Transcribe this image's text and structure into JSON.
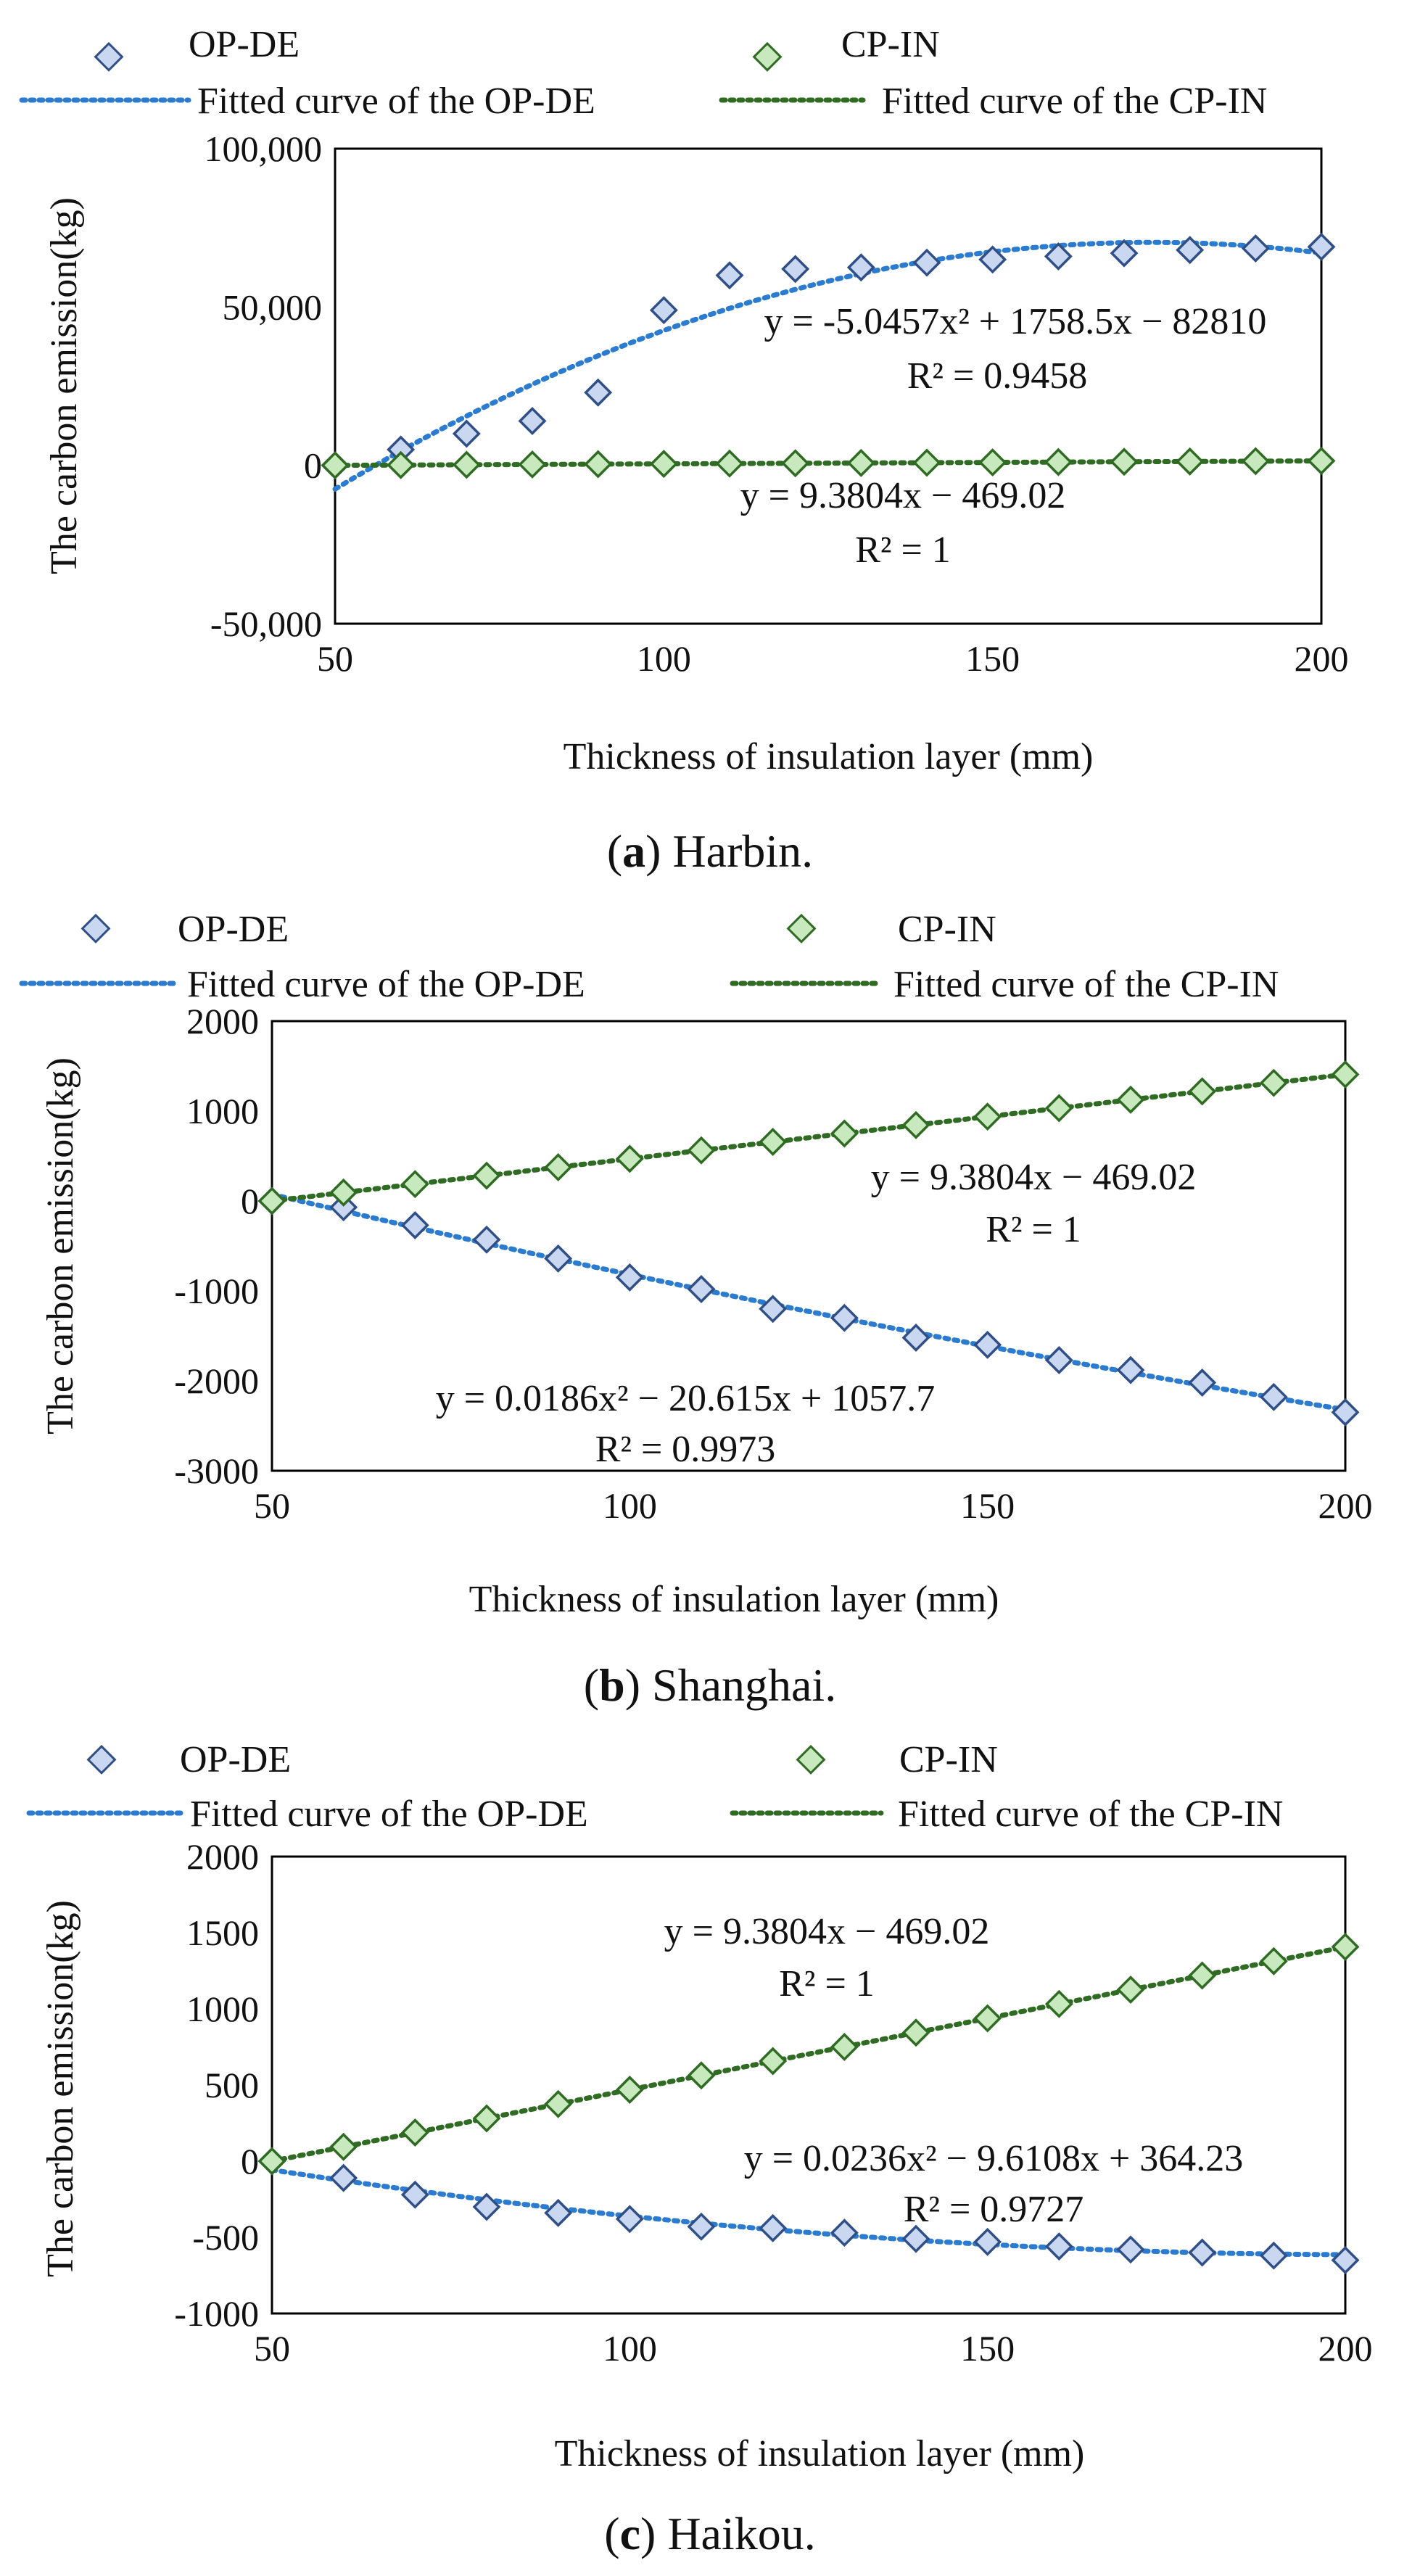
{
  "colors": {
    "op_stroke": "#2F4F86",
    "op_fill": "#C9D8F0",
    "op_fit": "#2B7BD0",
    "cp_stroke": "#2F6B22",
    "cp_fill": "#C8E8BE",
    "cp_fit": "#2F6B22",
    "axis": "#000000"
  },
  "chart_data": [
    {
      "id": "a",
      "type": "scatter",
      "title": "",
      "caption_letter": "a",
      "caption_text": "Harbin.",
      "xlabel": "Thickness of  insulation layer (mm)",
      "ylabel": "The carbon emission(kg)",
      "xlim": [
        50,
        200
      ],
      "ylim": [
        -50000,
        100000
      ],
      "xticks": [
        50,
        100,
        150,
        200
      ],
      "yticks": [
        -50000,
        0,
        50000,
        100000
      ],
      "ytick_labels": [
        "-50,000",
        "0",
        "50,000",
        "100,000"
      ],
      "xtick_labels": [
        "50",
        "100",
        "150",
        "200"
      ],
      "legend": {
        "op": "OP-DE",
        "cp": "CP-IN",
        "op_fit": "Fitted curve of the OP-DE",
        "cp_fit": "Fitted curve of the CP-IN"
      },
      "x": [
        50,
        60,
        70,
        80,
        90,
        100,
        110,
        120,
        130,
        140,
        150,
        160,
        170,
        180,
        190,
        200
      ],
      "series": [
        {
          "name": "OP-DE",
          "values": [
            0,
            5000,
            10000,
            14000,
            23000,
            49000,
            60000,
            62000,
            62500,
            64000,
            65000,
            66000,
            67000,
            68000,
            68500,
            69000
          ],
          "fit": {
            "type": "poly2",
            "a": -5.0457,
            "b": 1758.5,
            "c": -82810
          },
          "equation": "y = -5.0457x² + 1758.5x − 82810",
          "r2": "R² = 0.9458"
        },
        {
          "name": "CP-IN",
          "values": [
            0,
            94,
            188,
            281,
            375,
            469,
            563,
            657,
            750,
            844,
            938,
            1032,
            1126,
            1219,
            1313,
            1407
          ],
          "fit": {
            "type": "poly1",
            "a": 0,
            "b": 9.3804,
            "c": -469.02
          },
          "equation": "y = 9.3804x − 469.02",
          "r2": "R² = 1"
        }
      ]
    },
    {
      "id": "b",
      "type": "scatter",
      "title": "",
      "caption_letter": "b",
      "caption_text": "Shanghai.",
      "xlabel": "Thickness of  insulation layer  (mm)",
      "ylabel": "The carbon emission(kg)",
      "xlim": [
        50,
        200
      ],
      "ylim": [
        -3000,
        2000
      ],
      "xticks": [
        50,
        100,
        150,
        200
      ],
      "yticks": [
        -3000,
        -2000,
        -1000,
        0,
        1000,
        2000
      ],
      "ytick_labels": [
        "-3000",
        "-2000",
        "-1000",
        "0",
        "1000",
        "2000"
      ],
      "xtick_labels": [
        "50",
        "100",
        "150",
        "200"
      ],
      "legend": {
        "op": "OP-DE",
        "cp": "CP-IN",
        "op_fit": "Fitted curve of the OP-DE",
        "cp_fit": "Fitted curve of the CP-IN"
      },
      "x": [
        50,
        60,
        70,
        80,
        90,
        100,
        110,
        120,
        130,
        140,
        150,
        160,
        170,
        180,
        190,
        200
      ],
      "series": [
        {
          "name": "OP-DE",
          "values": [
            0,
            -70,
            -270,
            -430,
            -640,
            -850,
            -980,
            -1200,
            -1300,
            -1520,
            -1600,
            -1770,
            -1880,
            -2020,
            -2180,
            -2350
          ],
          "fit": {
            "type": "poly2",
            "a": 0.0186,
            "b": -20.615,
            "c": 1057.7
          },
          "equation": "y = 0.0186x² − 20.615x + 1057.7",
          "r2": "R² = 0.9973"
        },
        {
          "name": "CP-IN",
          "values": [
            0,
            94,
            188,
            281,
            375,
            469,
            563,
            657,
            750,
            844,
            938,
            1032,
            1126,
            1219,
            1313,
            1407
          ],
          "fit": {
            "type": "poly1",
            "a": 0,
            "b": 9.3804,
            "c": -469.02
          },
          "equation": "y = 9.3804x − 469.02",
          "r2": "R² = 1"
        }
      ]
    },
    {
      "id": "c",
      "type": "scatter",
      "title": "",
      "caption_letter": "c",
      "caption_text": "Haikou.",
      "xlabel": "Thickness of  insulation layer  (mm)",
      "ylabel": "The carbon emission(kg)",
      "xlim": [
        50,
        200
      ],
      "ylim": [
        -1000,
        2000
      ],
      "xticks": [
        50,
        100,
        150,
        200
      ],
      "yticks": [
        -1000,
        -500,
        0,
        500,
        1000,
        1500,
        2000
      ],
      "ytick_labels": [
        "-1000",
        "-500",
        "0",
        "500",
        "1000",
        "1500",
        "2000"
      ],
      "xtick_labels": [
        "50",
        "100",
        "150",
        "200"
      ],
      "legend": {
        "op": "OP-DE",
        "cp": "CP-IN",
        "op_fit": "Fitted curve of the OP-DE",
        "cp_fit": "Fitted curve of the CP-IN"
      },
      "x": [
        50,
        60,
        70,
        80,
        90,
        100,
        110,
        120,
        130,
        140,
        150,
        160,
        170,
        180,
        190,
        200
      ],
      "series": [
        {
          "name": "OP-DE",
          "values": [
            0,
            -110,
            -220,
            -300,
            -340,
            -380,
            -430,
            -440,
            -470,
            -510,
            -530,
            -560,
            -580,
            -600,
            -620,
            -650
          ],
          "fit": {
            "type": "poly2",
            "a": 0.0236,
            "b": -9.6108,
            "c": 364.23
          },
          "equation": "y = 0.0236x² − 9.6108x + 364.23",
          "r2": "R² = 0.9727"
        },
        {
          "name": "CP-IN",
          "values": [
            0,
            94,
            188,
            281,
            375,
            469,
            563,
            657,
            750,
            844,
            938,
            1032,
            1126,
            1219,
            1313,
            1407
          ],
          "fit": {
            "type": "poly1",
            "a": 0,
            "b": 9.3804,
            "c": -469.02
          },
          "equation": "y = 9.3804x − 469.02",
          "r2": "R² = 1"
        }
      ]
    }
  ]
}
